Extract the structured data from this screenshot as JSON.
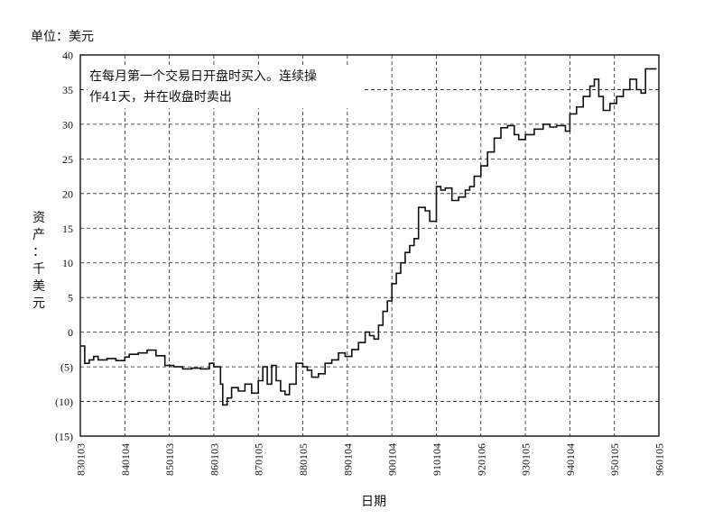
{
  "unit_label": "单位：美元",
  "ylabel_chars": [
    "资",
    "产",
    "：",
    "千",
    "美",
    "元"
  ],
  "xlabel": "日期",
  "annotation": {
    "line1": "在每月第一个交易日开盘时买入。连续操",
    "line2": "作41天，并在收盘时卖出"
  },
  "chart_data": {
    "type": "line",
    "title": "",
    "xlabel": "日期",
    "ylabel": "资产：千美元",
    "unit": "单位：美元",
    "ylim": [
      -15,
      40
    ],
    "yticks": [
      40,
      35,
      30,
      25,
      20,
      15,
      10,
      5,
      0,
      -5,
      -10,
      -15
    ],
    "ytick_labels": [
      "40",
      "35",
      "30",
      "25",
      "20",
      "15",
      "10",
      "5",
      "0",
      "(5)",
      "(10)",
      "(15)"
    ],
    "xticks": [
      "830103",
      "840104",
      "850103",
      "860103",
      "870105",
      "880105",
      "890104",
      "900104",
      "910104",
      "920106",
      "930105",
      "940104",
      "950105",
      "960105"
    ],
    "grid": true,
    "step": true,
    "series": [
      {
        "name": "",
        "points": [
          [
            0,
            -2.0
          ],
          [
            0.1,
            -4.5
          ],
          [
            0.2,
            -4.0
          ],
          [
            0.3,
            -3.5
          ],
          [
            0.4,
            -4.0
          ],
          [
            0.6,
            -3.8
          ],
          [
            0.8,
            -4.1
          ],
          [
            1.0,
            -3.6
          ],
          [
            1.1,
            -3.2
          ],
          [
            1.3,
            -3.0
          ],
          [
            1.5,
            -2.6
          ],
          [
            1.7,
            -3.4
          ],
          [
            1.9,
            -4.8
          ],
          [
            2.1,
            -5.0
          ],
          [
            2.3,
            -5.3
          ],
          [
            2.5,
            -5.2
          ],
          [
            2.7,
            -5.3
          ],
          [
            2.9,
            -4.5
          ],
          [
            3.0,
            -5.0
          ],
          [
            3.15,
            -7.5
          ],
          [
            3.2,
            -10.5
          ],
          [
            3.3,
            -9.5
          ],
          [
            3.4,
            -8.0
          ],
          [
            3.55,
            -8.5
          ],
          [
            3.7,
            -7.5
          ],
          [
            3.85,
            -8.8
          ],
          [
            4.0,
            -7.0
          ],
          [
            4.1,
            -5.0
          ],
          [
            4.2,
            -7.5
          ],
          [
            4.3,
            -4.8
          ],
          [
            4.4,
            -7.0
          ],
          [
            4.5,
            -8.5
          ],
          [
            4.6,
            -9.0
          ],
          [
            4.7,
            -7.5
          ],
          [
            4.85,
            -4.5
          ],
          [
            5.0,
            -5.0
          ],
          [
            5.1,
            -5.5
          ],
          [
            5.2,
            -6.5
          ],
          [
            5.35,
            -6.0
          ],
          [
            5.5,
            -4.5
          ],
          [
            5.65,
            -4.0
          ],
          [
            5.8,
            -3.0
          ],
          [
            5.95,
            -3.5
          ],
          [
            6.1,
            -2.5
          ],
          [
            6.25,
            -1.5
          ],
          [
            6.4,
            0.0
          ],
          [
            6.5,
            -0.5
          ],
          [
            6.6,
            -1.0
          ],
          [
            6.7,
            1.0
          ],
          [
            6.8,
            3.0
          ],
          [
            6.9,
            4.5
          ],
          [
            7.0,
            7.0
          ],
          [
            7.1,
            8.5
          ],
          [
            7.2,
            10.0
          ],
          [
            7.3,
            11.5
          ],
          [
            7.4,
            12.5
          ],
          [
            7.5,
            13.5
          ],
          [
            7.6,
            18.0
          ],
          [
            7.75,
            17.5
          ],
          [
            7.85,
            16.0
          ],
          [
            8.0,
            21.0
          ],
          [
            8.1,
            20.5
          ],
          [
            8.2,
            20.8
          ],
          [
            8.35,
            19.0
          ],
          [
            8.5,
            19.5
          ],
          [
            8.65,
            20.5
          ],
          [
            8.75,
            21.0
          ],
          [
            8.85,
            22.5
          ],
          [
            9.0,
            24.0
          ],
          [
            9.15,
            26.0
          ],
          [
            9.3,
            28.0
          ],
          [
            9.45,
            29.5
          ],
          [
            9.6,
            29.8
          ],
          [
            9.75,
            28.5
          ],
          [
            9.85,
            27.8
          ],
          [
            10.0,
            28.5
          ],
          [
            10.2,
            29.3
          ],
          [
            10.4,
            30.0
          ],
          [
            10.55,
            29.6
          ],
          [
            10.7,
            29.8
          ],
          [
            10.9,
            29.0
          ],
          [
            11.0,
            31.5
          ],
          [
            11.15,
            32.5
          ],
          [
            11.3,
            34.0
          ],
          [
            11.45,
            35.5
          ],
          [
            11.55,
            36.5
          ],
          [
            11.65,
            34.0
          ],
          [
            11.75,
            32.0
          ],
          [
            11.9,
            33.0
          ],
          [
            12.05,
            34.0
          ],
          [
            12.2,
            35.0
          ],
          [
            12.35,
            36.5
          ],
          [
            12.5,
            35.0
          ],
          [
            12.6,
            34.5
          ],
          [
            12.7,
            38.0
          ],
          [
            12.95,
            38.0
          ]
        ]
      }
    ]
  }
}
